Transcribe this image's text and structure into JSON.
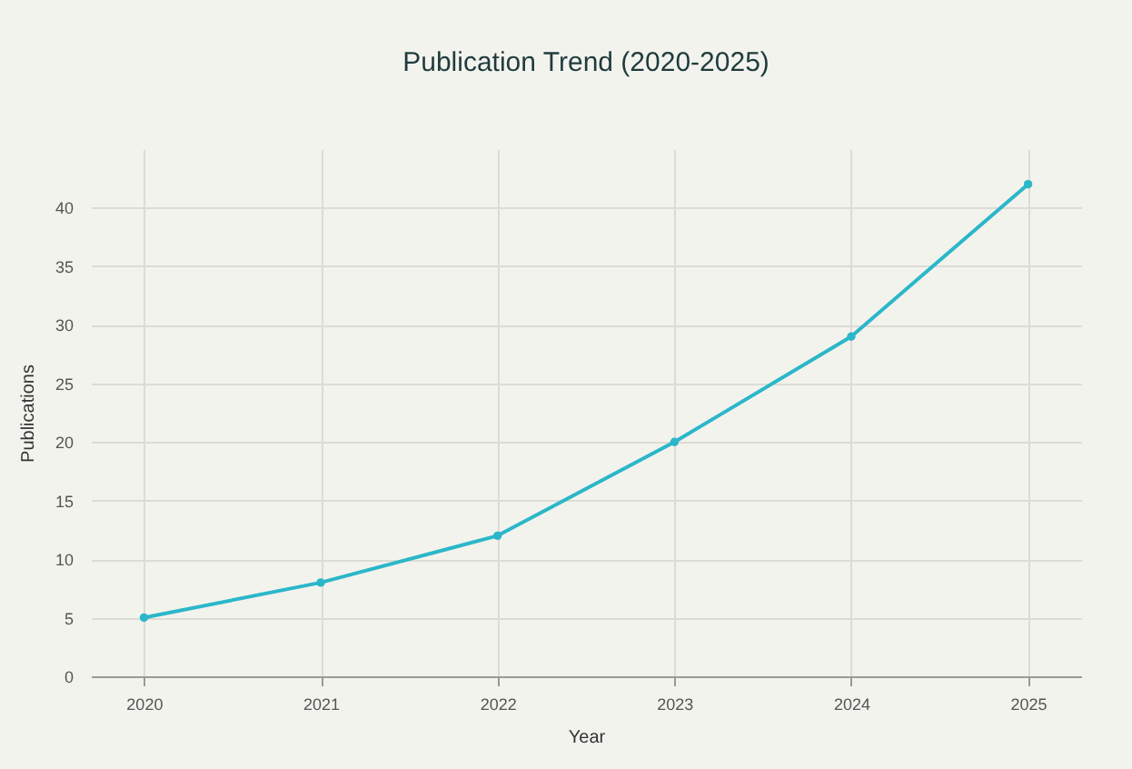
{
  "chart_data": {
    "type": "line",
    "title": "Publication Trend (2020-2025)",
    "xlabel": "Year",
    "ylabel": "Publications",
    "categories": [
      "2020",
      "2021",
      "2022",
      "2023",
      "2024",
      "2025"
    ],
    "series": [
      {
        "color": "#2bb7c9",
        "values": [
          5,
          8,
          12,
          20,
          29,
          42
        ]
      }
    ],
    "ylim": [
      0,
      45
    ],
    "yticks": [
      0,
      5,
      10,
      15,
      20,
      25,
      30,
      35,
      40
    ],
    "grid": true,
    "marker": "circle",
    "line_style": "solid"
  }
}
